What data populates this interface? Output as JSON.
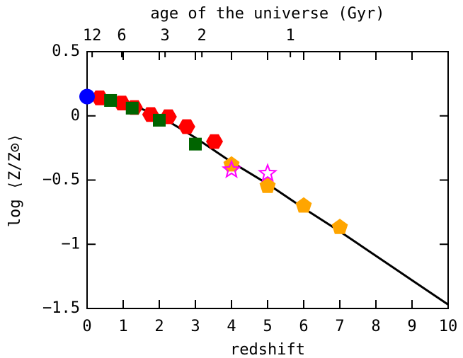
{
  "chart_data": {
    "type": "scatter",
    "xlabel": "redshift",
    "ylabel": "log ⟨Z/Z⊙⟩",
    "x2label": "age of the universe (Gyr)",
    "xlim": [
      0,
      10
    ],
    "ylim": [
      -1.5,
      0.5
    ],
    "xticks": [
      0,
      1,
      2,
      3,
      4,
      5,
      6,
      7,
      8,
      9,
      10
    ],
    "yticks": [
      {
        "value": 0.5,
        "label": "0.5"
      },
      0,
      {
        "value": -0.5,
        "label": "−0.5"
      },
      {
        "value": -1,
        "label": "−1"
      },
      {
        "value": -1.5,
        "label": "−1.5"
      }
    ],
    "x2ticks": [
      {
        "value": 0.14,
        "label": "12"
      },
      {
        "value": 0.96,
        "label": "6"
      },
      {
        "value": 2.16,
        "label": "3"
      },
      {
        "value": 3.18,
        "label": "2"
      },
      {
        "value": 5.63,
        "label": "1"
      }
    ],
    "series": [
      {
        "marker": "line",
        "color": "#000000",
        "x": [
          0,
          1,
          2,
          3,
          4,
          5,
          6,
          7,
          8,
          9,
          10
        ],
        "values": [
          0.17,
          0.11,
          0.0,
          -0.17,
          -0.36,
          -0.53,
          -0.72,
          -0.9,
          -1.09,
          -1.28,
          -1.47
        ]
      },
      {
        "marker": "hexagon",
        "color": "#ff0000",
        "x": [
          0.35,
          0.96,
          1.31,
          1.76,
          2.25,
          2.76,
          3.53
        ],
        "values": [
          0.14,
          0.1,
          0.065,
          0.01,
          -0.007,
          -0.084,
          -0.2
        ]
      },
      {
        "marker": "square",
        "color": "#006400",
        "x": [
          0.65,
          1.25,
          2.0,
          3.0
        ],
        "values": [
          0.12,
          0.06,
          -0.034,
          -0.22
        ]
      },
      {
        "marker": "pentagon",
        "color": "#ffa500",
        "x": [
          4.0,
          5.0,
          6.0,
          7.0
        ],
        "values": [
          -0.38,
          -0.547,
          -0.7,
          -0.867
        ]
      },
      {
        "marker": "circle",
        "color": "#0000ff",
        "x": [
          0
        ],
        "values": [
          0.15
        ]
      },
      {
        "marker": "star",
        "color": "#ff00ff",
        "x": [
          4.0,
          5.0
        ],
        "values": [
          -0.42,
          -0.448
        ]
      }
    ]
  }
}
